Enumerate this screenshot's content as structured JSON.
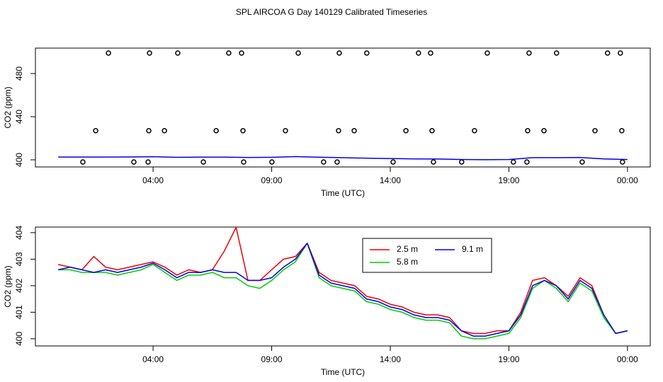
{
  "title": "SPL AIRCOA G  Day 140129  Calibrated Timeseries",
  "chart_data": [
    {
      "type": "line",
      "xlabel": "Time (UTC)",
      "ylabel": "CO2 (ppm)",
      "xlim": [
        -0.96,
        24.96
      ],
      "xticks": [
        {
          "value": 4,
          "label": "04:00"
        },
        {
          "value": 9,
          "label": "09:00"
        },
        {
          "value": 14,
          "label": "14:00"
        },
        {
          "value": 19,
          "label": "19:00"
        },
        {
          "value": 24,
          "label": "00:00"
        }
      ],
      "ylim": [
        393.4,
        503.6
      ],
      "yticks": [
        400,
        440,
        480
      ],
      "series": [
        {
          "color": "#000000",
          "style": "points",
          "x": [
            1.04,
            1.58,
            2.12,
            3.19,
            3.79,
            3.82,
            3.85,
            4.48,
            5.04,
            6.12,
            6.66,
            7.19,
            7.73,
            7.79,
            7.82,
            9.01,
            9.58,
            10.12,
            11.19,
            11.76,
            11.82,
            11.85,
            12.48,
            13.01,
            14.12,
            14.66,
            15.19,
            15.7,
            15.76,
            15.82,
            17.01,
            17.55,
            18.09,
            19.19,
            19.76,
            19.79,
            19.85,
            20.48,
            21.01,
            22.09,
            22.63,
            23.16,
            23.7,
            23.76,
            23.79
          ],
          "values": [
            398,
            427,
            499,
            398,
            398,
            427,
            499,
            427,
            499,
            398,
            427,
            499,
            499,
            427,
            398,
            398,
            427,
            499,
            398,
            398,
            427,
            499,
            427,
            499,
            398,
            427,
            499,
            499,
            427,
            398,
            398,
            427,
            499,
            398,
            398,
            427,
            499,
            427,
            499,
            398,
            427,
            499,
            499,
            427,
            398
          ]
        },
        {
          "color": "#0000ee",
          "style": "line",
          "x": [
            0,
            1,
            2,
            3,
            4,
            5,
            6,
            7,
            8,
            9,
            10,
            11,
            12,
            13,
            14,
            15,
            16,
            17,
            18,
            19,
            20,
            21,
            22,
            23,
            24
          ],
          "values": [
            402.6,
            402.6,
            402.6,
            402.7,
            402.9,
            402.3,
            402.5,
            402.5,
            402.2,
            402.3,
            403.0,
            402.4,
            402.0,
            401.5,
            401.2,
            400.9,
            400.8,
            400.3,
            400.1,
            400.3,
            402.0,
            402.0,
            402.2,
            400.9,
            400.3
          ]
        }
      ]
    },
    {
      "type": "line",
      "xlabel": "Time (UTC)",
      "ylabel": "CO2 (ppm)",
      "xlim": [
        -0.96,
        24.96
      ],
      "xticks": [
        {
          "value": 4,
          "label": "04:00"
        },
        {
          "value": 9,
          "label": "09:00"
        },
        {
          "value": 14,
          "label": "14:00"
        },
        {
          "value": 19,
          "label": "19:00"
        },
        {
          "value": 24,
          "label": "00:00"
        }
      ],
      "ylim": [
        399.73,
        404.21
      ],
      "yticks": [
        400,
        401,
        402,
        403,
        404
      ],
      "legend": "top",
      "x": [
        0,
        0.5,
        1,
        1.5,
        2,
        2.5,
        3,
        3.5,
        4,
        4.5,
        5,
        5.5,
        6,
        6.5,
        7,
        7.5,
        8,
        8.5,
        9,
        9.5,
        10,
        10.5,
        11,
        11.5,
        12,
        12.5,
        13,
        13.5,
        14,
        14.5,
        15,
        15.5,
        16,
        16.5,
        17,
        17.5,
        18,
        18.5,
        19,
        19.5,
        20,
        20.5,
        21,
        21.5,
        22,
        22.5,
        23,
        23.5,
        24
      ],
      "series": [
        {
          "name": "2.5 m",
          "color": "#ee0000",
          "style": "line",
          "values": [
            402.8,
            402.7,
            402.6,
            403.1,
            402.7,
            402.6,
            402.7,
            402.8,
            402.9,
            402.7,
            402.4,
            402.6,
            402.5,
            402.6,
            403.3,
            404.2,
            402.2,
            402.2,
            402.6,
            403.0,
            403.1,
            403.6,
            402.5,
            402.2,
            402.1,
            402.0,
            401.6,
            401.5,
            401.3,
            401.2,
            401.0,
            400.9,
            400.9,
            400.8,
            400.3,
            400.2,
            400.2,
            400.3,
            400.3,
            401.0,
            402.2,
            402.3,
            402.0,
            401.6,
            402.3,
            402.0,
            400.9,
            400.2,
            400.3
          ]
        },
        {
          "name": "5.8 m",
          "color": "#00cd00",
          "style": "line",
          "values": [
            402.6,
            402.6,
            402.5,
            402.5,
            402.5,
            402.4,
            402.5,
            402.6,
            402.8,
            402.5,
            402.2,
            402.4,
            402.4,
            402.5,
            402.3,
            402.3,
            402.0,
            401.9,
            402.2,
            402.6,
            402.9,
            403.6,
            402.3,
            402.0,
            401.9,
            401.8,
            401.4,
            401.3,
            401.1,
            401.0,
            400.8,
            400.7,
            400.7,
            400.6,
            400.1,
            400.0,
            400.0,
            400.1,
            400.2,
            400.8,
            401.9,
            402.2,
            401.9,
            401.4,
            402.1,
            401.8,
            400.8,
            400.2,
            400.3
          ]
        },
        {
          "name": "9.1 m",
          "color": "#0000ee",
          "style": "line",
          "values": [
            402.6,
            402.7,
            402.6,
            402.5,
            402.6,
            402.5,
            402.6,
            402.7,
            402.85,
            402.6,
            402.3,
            402.5,
            402.5,
            402.6,
            402.5,
            402.5,
            402.2,
            402.2,
            402.3,
            402.7,
            403.0,
            403.6,
            402.4,
            402.1,
            402.0,
            401.9,
            401.5,
            401.4,
            401.2,
            401.1,
            400.9,
            400.8,
            400.8,
            400.7,
            400.3,
            400.1,
            400.1,
            400.2,
            400.3,
            400.9,
            402.0,
            402.2,
            402.0,
            401.5,
            402.2,
            401.9,
            400.9,
            400.2,
            400.3
          ]
        }
      ]
    }
  ]
}
